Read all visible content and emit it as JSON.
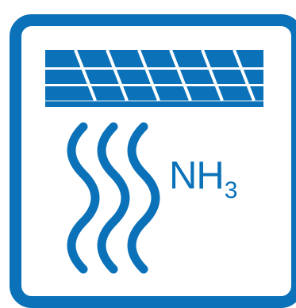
{
  "icon": {
    "name": "solar-panel-ammonia-emission-icon",
    "accent_color": "#0b72b9",
    "background_color": "#ffffff"
  },
  "label": {
    "formula_main": "NH",
    "formula_subscript": "3"
  }
}
